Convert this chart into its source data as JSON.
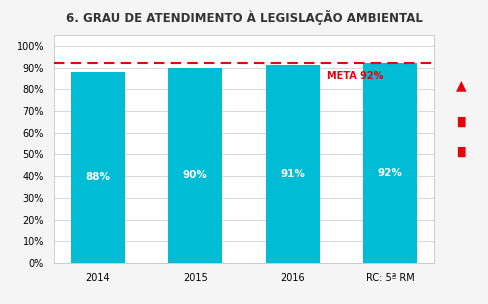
{
  "title": "6. GRAU DE ATENDIMENTO À LEGISLAÇÃO AMBIENTAL",
  "categories": [
    "2014",
    "2015",
    "2016",
    "RC: 5ª RM"
  ],
  "values": [
    0.88,
    0.9,
    0.91,
    0.92
  ],
  "bar_labels": [
    "88%",
    "90%",
    "91%",
    "92%"
  ],
  "bar_color": "#00BCD4",
  "meta_value": 0.92,
  "meta_label": "META 92%",
  "meta_color": "#E8000A",
  "ylim": [
    0,
    1.05
  ],
  "yticks": [
    0.0,
    0.1,
    0.2,
    0.3,
    0.4,
    0.5,
    0.6,
    0.7,
    0.8,
    0.9,
    1.0
  ],
  "ytick_labels": [
    "0%",
    "10%",
    "20%",
    "30%",
    "40%",
    "50%",
    "60%",
    "70%",
    "80%",
    "90%",
    "100%"
  ],
  "title_fontsize": 8.5,
  "bar_label_fontsize": 7.5,
  "tick_fontsize": 7,
  "title_bg_color": "#DCDCDC",
  "plot_bg_color": "#FFFFFF",
  "outer_bg_color": "#F5F5F5",
  "grid_color": "#D0D0D0"
}
